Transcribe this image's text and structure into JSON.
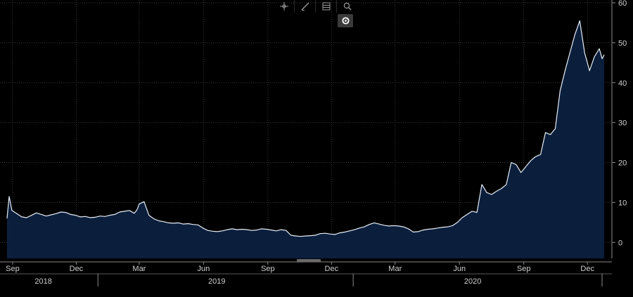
{
  "toolbar": {
    "icons": [
      "crosshair-icon",
      "draw-line-icon",
      "table-icon",
      "zoom-icon"
    ],
    "settings_icon": "settings-icon"
  },
  "colors": {
    "background": "#000000",
    "area_fill": "#0b1f3d",
    "line": "#e8eef5",
    "grid": "#3a3a3a",
    "text": "#cfcfcf"
  },
  "chart_data": {
    "type": "area",
    "title": "",
    "xlabel": "",
    "ylabel": "",
    "ylim": [
      -4,
      60
    ],
    "yticks": [
      0,
      10,
      20,
      30,
      40,
      50,
      60
    ],
    "y_axis_side": "right",
    "grid": true,
    "month_ticks": [
      "Sep",
      "Dec",
      "Mar",
      "Jun",
      "Sep",
      "Dec",
      "Mar",
      "Jun",
      "Sep",
      "Dec"
    ],
    "month_tick_dates": [
      "2018-09-01",
      "2018-12-01",
      "2019-03-01",
      "2019-06-01",
      "2019-09-01",
      "2019-12-01",
      "2020-03-01",
      "2020-06-01",
      "2020-09-01",
      "2020-12-01"
    ],
    "years": [
      "2018",
      "2019",
      "2020"
    ],
    "year_dates": [
      "2018-10-15",
      "2019-06-20",
      "2020-06-20"
    ],
    "x_range": [
      "2018-08-20",
      "2021-01-05"
    ],
    "series": [
      {
        "x": [
          "2018-08-24",
          "2018-08-27",
          "2018-08-31",
          "2018-09-07",
          "2018-09-14",
          "2018-09-21",
          "2018-09-28",
          "2018-10-05",
          "2018-10-12",
          "2018-10-19",
          "2018-10-26",
          "2018-11-02",
          "2018-11-09",
          "2018-11-16",
          "2018-11-23",
          "2018-11-30",
          "2018-12-07",
          "2018-12-14",
          "2018-12-21",
          "2018-12-28",
          "2019-01-04",
          "2019-01-11",
          "2019-01-18",
          "2019-01-25",
          "2019-02-01",
          "2019-02-08",
          "2019-02-15",
          "2019-02-22",
          "2019-02-26",
          "2019-03-01",
          "2019-03-08",
          "2019-03-15",
          "2019-03-22",
          "2019-03-29",
          "2019-04-05",
          "2019-04-12",
          "2019-04-19",
          "2019-04-26",
          "2019-05-03",
          "2019-05-10",
          "2019-05-17",
          "2019-05-24",
          "2019-05-31",
          "2019-06-07",
          "2019-06-14",
          "2019-06-21",
          "2019-06-28",
          "2019-07-05",
          "2019-07-12",
          "2019-07-19",
          "2019-07-26",
          "2019-08-02",
          "2019-08-09",
          "2019-08-16",
          "2019-08-23",
          "2019-08-30",
          "2019-09-06",
          "2019-09-13",
          "2019-09-20",
          "2019-09-27",
          "2019-10-04",
          "2019-10-11",
          "2019-10-18",
          "2019-10-25",
          "2019-11-01",
          "2019-11-08",
          "2019-11-15",
          "2019-11-22",
          "2019-11-29",
          "2019-12-06",
          "2019-12-13",
          "2019-12-20",
          "2019-12-27",
          "2020-01-03",
          "2020-01-10",
          "2020-01-17",
          "2020-01-24",
          "2020-01-31",
          "2020-02-07",
          "2020-02-14",
          "2020-02-21",
          "2020-02-28",
          "2020-03-06",
          "2020-03-13",
          "2020-03-20",
          "2020-03-27",
          "2020-04-03",
          "2020-04-10",
          "2020-04-17",
          "2020-04-24",
          "2020-05-01",
          "2020-05-08",
          "2020-05-15",
          "2020-05-22",
          "2020-05-29",
          "2020-06-05",
          "2020-06-12",
          "2020-06-19",
          "2020-06-26",
          "2020-07-03",
          "2020-07-10",
          "2020-07-17",
          "2020-07-24",
          "2020-07-31",
          "2020-08-07",
          "2020-08-14",
          "2020-08-21",
          "2020-08-28",
          "2020-09-04",
          "2020-09-11",
          "2020-09-18",
          "2020-09-25",
          "2020-10-02",
          "2020-10-09",
          "2020-10-16",
          "2020-10-23",
          "2020-10-30",
          "2020-11-06",
          "2020-11-13",
          "2020-11-20",
          "2020-11-27",
          "2020-12-04",
          "2020-12-11",
          "2020-12-18",
          "2020-12-22",
          "2020-12-25"
        ],
        "values": [
          6.0,
          11.5,
          8.0,
          7.2,
          6.4,
          6.2,
          6.8,
          7.4,
          7.0,
          6.6,
          6.9,
          7.2,
          7.6,
          7.5,
          7.0,
          6.8,
          6.4,
          6.5,
          6.2,
          6.3,
          6.6,
          6.5,
          6.8,
          7.0,
          7.6,
          7.8,
          8.0,
          7.3,
          8.2,
          9.6,
          10.2,
          6.8,
          5.9,
          5.4,
          5.2,
          4.9,
          4.8,
          4.9,
          4.6,
          4.7,
          4.5,
          4.4,
          3.6,
          3.0,
          2.8,
          2.7,
          2.9,
          3.2,
          3.4,
          3.2,
          3.3,
          3.2,
          3.0,
          3.1,
          3.4,
          3.3,
          3.1,
          2.9,
          3.2,
          3.0,
          1.8,
          1.6,
          1.5,
          1.6,
          1.7,
          1.8,
          2.2,
          2.3,
          2.1,
          2.0,
          2.4,
          2.6,
          2.9,
          3.2,
          3.6,
          3.9,
          4.5,
          4.9,
          4.6,
          4.3,
          4.1,
          4.2,
          4.1,
          3.9,
          3.4,
          2.6,
          2.7,
          3.1,
          3.3,
          3.4,
          3.6,
          3.8,
          3.9,
          4.2,
          5.0,
          6.2,
          7.0,
          7.8,
          7.5,
          14.5,
          12.5,
          12.0,
          12.8,
          13.5,
          14.5,
          20.0,
          19.5,
          17.5,
          19.0,
          20.5,
          21.5,
          22.0,
          27.5,
          27.0,
          28.5,
          38.0,
          43.0,
          47.5,
          52.0,
          55.5,
          47.5,
          43.0,
          46.5,
          48.5,
          46.0,
          47.0
        ]
      }
    ]
  }
}
